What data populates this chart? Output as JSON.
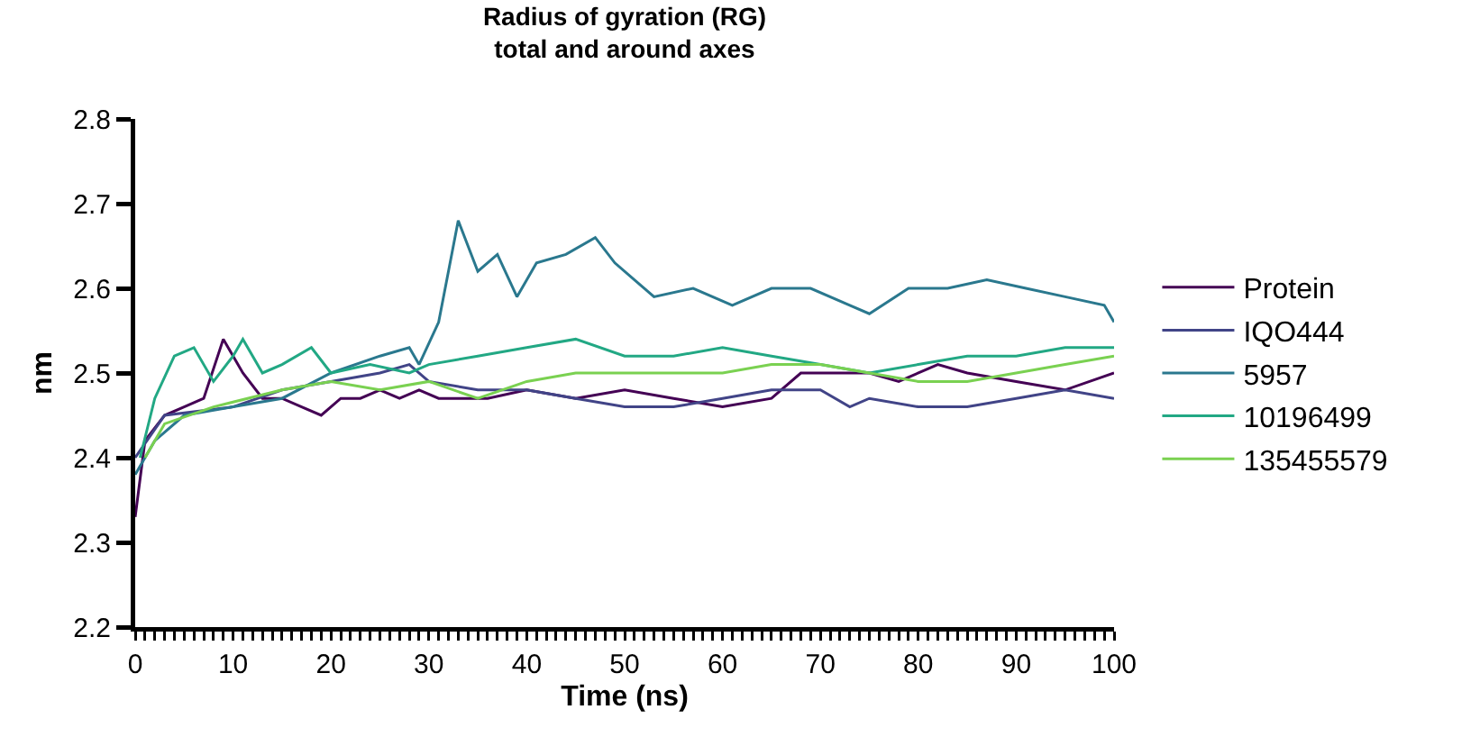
{
  "chart_data": {
    "type": "line",
    "title": "Radius of gyration (RG)\ntotal and around axes",
    "xlabel": "Time (ns)",
    "ylabel": "nm",
    "xlim": [
      0,
      100
    ],
    "ylim": [
      2.2,
      2.8
    ],
    "xticks": [
      0,
      {
        "value": 1,
        "label": null
      },
      {
        "value": 2,
        "label": null
      },
      {
        "value": 3,
        "label": null
      },
      {
        "value": 4,
        "label": null
      },
      {
        "value": 5,
        "label": null
      },
      {
        "value": 6,
        "label": null
      },
      {
        "value": 7,
        "label": null
      },
      {
        "value": 8,
        "label": null
      },
      {
        "value": 9,
        "label": null
      },
      10,
      {
        "value": 11,
        "label": null
      },
      {
        "value": 12,
        "label": null
      },
      {
        "value": 13,
        "label": null
      },
      {
        "value": 14,
        "label": null
      },
      {
        "value": 15,
        "label": null
      },
      {
        "value": 16,
        "label": null
      },
      {
        "value": 17,
        "label": null
      },
      {
        "value": 18,
        "label": null
      },
      {
        "value": 19,
        "label": null
      },
      20,
      {
        "value": 21,
        "label": null
      },
      {
        "value": 22,
        "label": null
      },
      {
        "value": 23,
        "label": null
      },
      {
        "value": 24,
        "label": null
      },
      {
        "value": 25,
        "label": null
      },
      {
        "value": 26,
        "label": null
      },
      {
        "value": 27,
        "label": null
      },
      {
        "value": 28,
        "label": null
      },
      {
        "value": 29,
        "label": null
      },
      30,
      {
        "value": 31,
        "label": null
      },
      {
        "value": 32,
        "label": null
      },
      {
        "value": 33,
        "label": null
      },
      {
        "value": 34,
        "label": null
      },
      {
        "value": 35,
        "label": null
      },
      {
        "value": 36,
        "label": null
      },
      {
        "value": 37,
        "label": null
      },
      {
        "value": 38,
        "label": null
      },
      {
        "value": 39,
        "label": null
      },
      40,
      {
        "value": 41,
        "label": null
      },
      {
        "value": 42,
        "label": null
      },
      {
        "value": 43,
        "label": null
      },
      {
        "value": 44,
        "label": null
      },
      {
        "value": 45,
        "label": null
      },
      {
        "value": 46,
        "label": null
      },
      {
        "value": 47,
        "label": null
      },
      {
        "value": 48,
        "label": null
      },
      {
        "value": 49,
        "label": null
      },
      50,
      {
        "value": 51,
        "label": null
      },
      {
        "value": 52,
        "label": null
      },
      {
        "value": 53,
        "label": null
      },
      {
        "value": 54,
        "label": null
      },
      {
        "value": 55,
        "label": null
      },
      {
        "value": 56,
        "label": null
      },
      {
        "value": 57,
        "label": null
      },
      {
        "value": 58,
        "label": null
      },
      {
        "value": 59,
        "label": null
      },
      60,
      {
        "value": 61,
        "label": null
      },
      {
        "value": 62,
        "label": null
      },
      {
        "value": 63,
        "label": null
      },
      {
        "value": 64,
        "label": null
      },
      {
        "value": 65,
        "label": null
      },
      {
        "value": 66,
        "label": null
      },
      {
        "value": 67,
        "label": null
      },
      {
        "value": 68,
        "label": null
      },
      {
        "value": 69,
        "label": null
      },
      70,
      {
        "value": 71,
        "label": null
      },
      {
        "value": 72,
        "label": null
      },
      {
        "value": 73,
        "label": null
      },
      {
        "value": 74,
        "label": null
      },
      {
        "value": 75,
        "label": null
      },
      {
        "value": 76,
        "label": null
      },
      {
        "value": 77,
        "label": null
      },
      {
        "value": 78,
        "label": null
      },
      {
        "value": 79,
        "label": null
      },
      80,
      {
        "value": 81,
        "label": null
      },
      {
        "value": 82,
        "label": null
      },
      {
        "value": 83,
        "label": null
      },
      {
        "value": 84,
        "label": null
      },
      {
        "value": 85,
        "label": null
      },
      {
        "value": 86,
        "label": null
      },
      {
        "value": 87,
        "label": null
      },
      {
        "value": 88,
        "label": null
      },
      {
        "value": 89,
        "label": null
      },
      90,
      {
        "value": 91,
        "label": null
      },
      {
        "value": 92,
        "label": null
      },
      {
        "value": 93,
        "label": null
      },
      {
        "value": 94,
        "label": null
      },
      {
        "value": 95,
        "label": null
      },
      {
        "value": 96,
        "label": null
      },
      {
        "value": 97,
        "label": null
      },
      {
        "value": 98,
        "label": null
      },
      {
        "value": 99,
        "label": null
      },
      100
    ],
    "yticks": [
      2.2,
      2.3,
      2.4,
      2.5,
      2.6,
      2.7,
      2.8
    ],
    "grid": false,
    "legend": "right",
    "marker": "none",
    "line_style": "solid",
    "series": [
      {
        "name": "Protein",
        "color": "#440154",
        "x": [
          0,
          1,
          3,
          5,
          7,
          9,
          11,
          13,
          15,
          17,
          19,
          21,
          23,
          25,
          27,
          29,
          31,
          33,
          36,
          40,
          45,
          50,
          55,
          60,
          65,
          68,
          70,
          75,
          78,
          82,
          85,
          90,
          95,
          100
        ],
        "values": [
          2.33,
          2.42,
          2.45,
          2.46,
          2.47,
          2.54,
          2.5,
          2.47,
          2.47,
          2.46,
          2.45,
          2.47,
          2.47,
          2.48,
          2.47,
          2.48,
          2.47,
          2.47,
          2.47,
          2.48,
          2.47,
          2.48,
          2.47,
          2.46,
          2.47,
          2.5,
          2.5,
          2.5,
          2.49,
          2.51,
          2.5,
          2.49,
          2.48,
          2.5
        ]
      },
      {
        "name": "IQO444",
        "color": "#414487",
        "x": [
          0,
          3,
          10,
          15,
          20,
          25,
          28,
          30,
          35,
          40,
          45,
          50,
          55,
          60,
          65,
          70,
          73,
          75,
          80,
          85,
          90,
          95,
          100
        ],
        "values": [
          2.4,
          2.45,
          2.46,
          2.48,
          2.49,
          2.5,
          2.51,
          2.49,
          2.48,
          2.48,
          2.47,
          2.46,
          2.46,
          2.47,
          2.48,
          2.48,
          2.46,
          2.47,
          2.46,
          2.46,
          2.47,
          2.48,
          2.47
        ]
      },
      {
        "name": "5957",
        "color": "#2a788e",
        "x": [
          0,
          2,
          5,
          10,
          15,
          20,
          25,
          28,
          29,
          31,
          32,
          33,
          35,
          37,
          39,
          41,
          44,
          47,
          49,
          51,
          53,
          57,
          61,
          65,
          69,
          73,
          75,
          79,
          83,
          87,
          91,
          95,
          99,
          100
        ],
        "values": [
          2.38,
          2.42,
          2.45,
          2.46,
          2.47,
          2.5,
          2.52,
          2.53,
          2.51,
          2.56,
          2.62,
          2.68,
          2.62,
          2.64,
          2.59,
          2.63,
          2.64,
          2.66,
          2.63,
          2.61,
          2.59,
          2.6,
          2.58,
          2.6,
          2.6,
          2.58,
          2.57,
          2.6,
          2.6,
          2.61,
          2.6,
          2.59,
          2.58,
          2.56
        ]
      },
      {
        "name": "10196499",
        "color": "#22a884",
        "x": [
          0.5,
          2,
          4,
          6,
          8,
          10,
          11,
          13,
          15,
          18,
          20,
          24,
          28,
          30,
          35,
          40,
          45,
          50,
          55,
          60,
          65,
          70,
          75,
          80,
          85,
          90,
          95,
          100
        ],
        "values": [
          2.4,
          2.47,
          2.52,
          2.53,
          2.49,
          2.52,
          2.54,
          2.5,
          2.51,
          2.53,
          2.5,
          2.51,
          2.5,
          2.51,
          2.52,
          2.53,
          2.54,
          2.52,
          2.52,
          2.53,
          2.52,
          2.51,
          2.5,
          2.51,
          2.52,
          2.52,
          2.53,
          2.53
        ]
      },
      {
        "name": "135455579",
        "color": "#7ad151",
        "x": [
          1,
          3,
          8,
          15,
          20,
          25,
          30,
          35,
          40,
          45,
          50,
          55,
          60,
          65,
          70,
          75,
          80,
          85,
          90,
          95,
          100
        ],
        "values": [
          2.4,
          2.44,
          2.46,
          2.48,
          2.49,
          2.48,
          2.49,
          2.47,
          2.49,
          2.5,
          2.5,
          2.5,
          2.5,
          2.51,
          2.51,
          2.5,
          2.49,
          2.49,
          2.5,
          2.51,
          2.52
        ]
      }
    ]
  }
}
